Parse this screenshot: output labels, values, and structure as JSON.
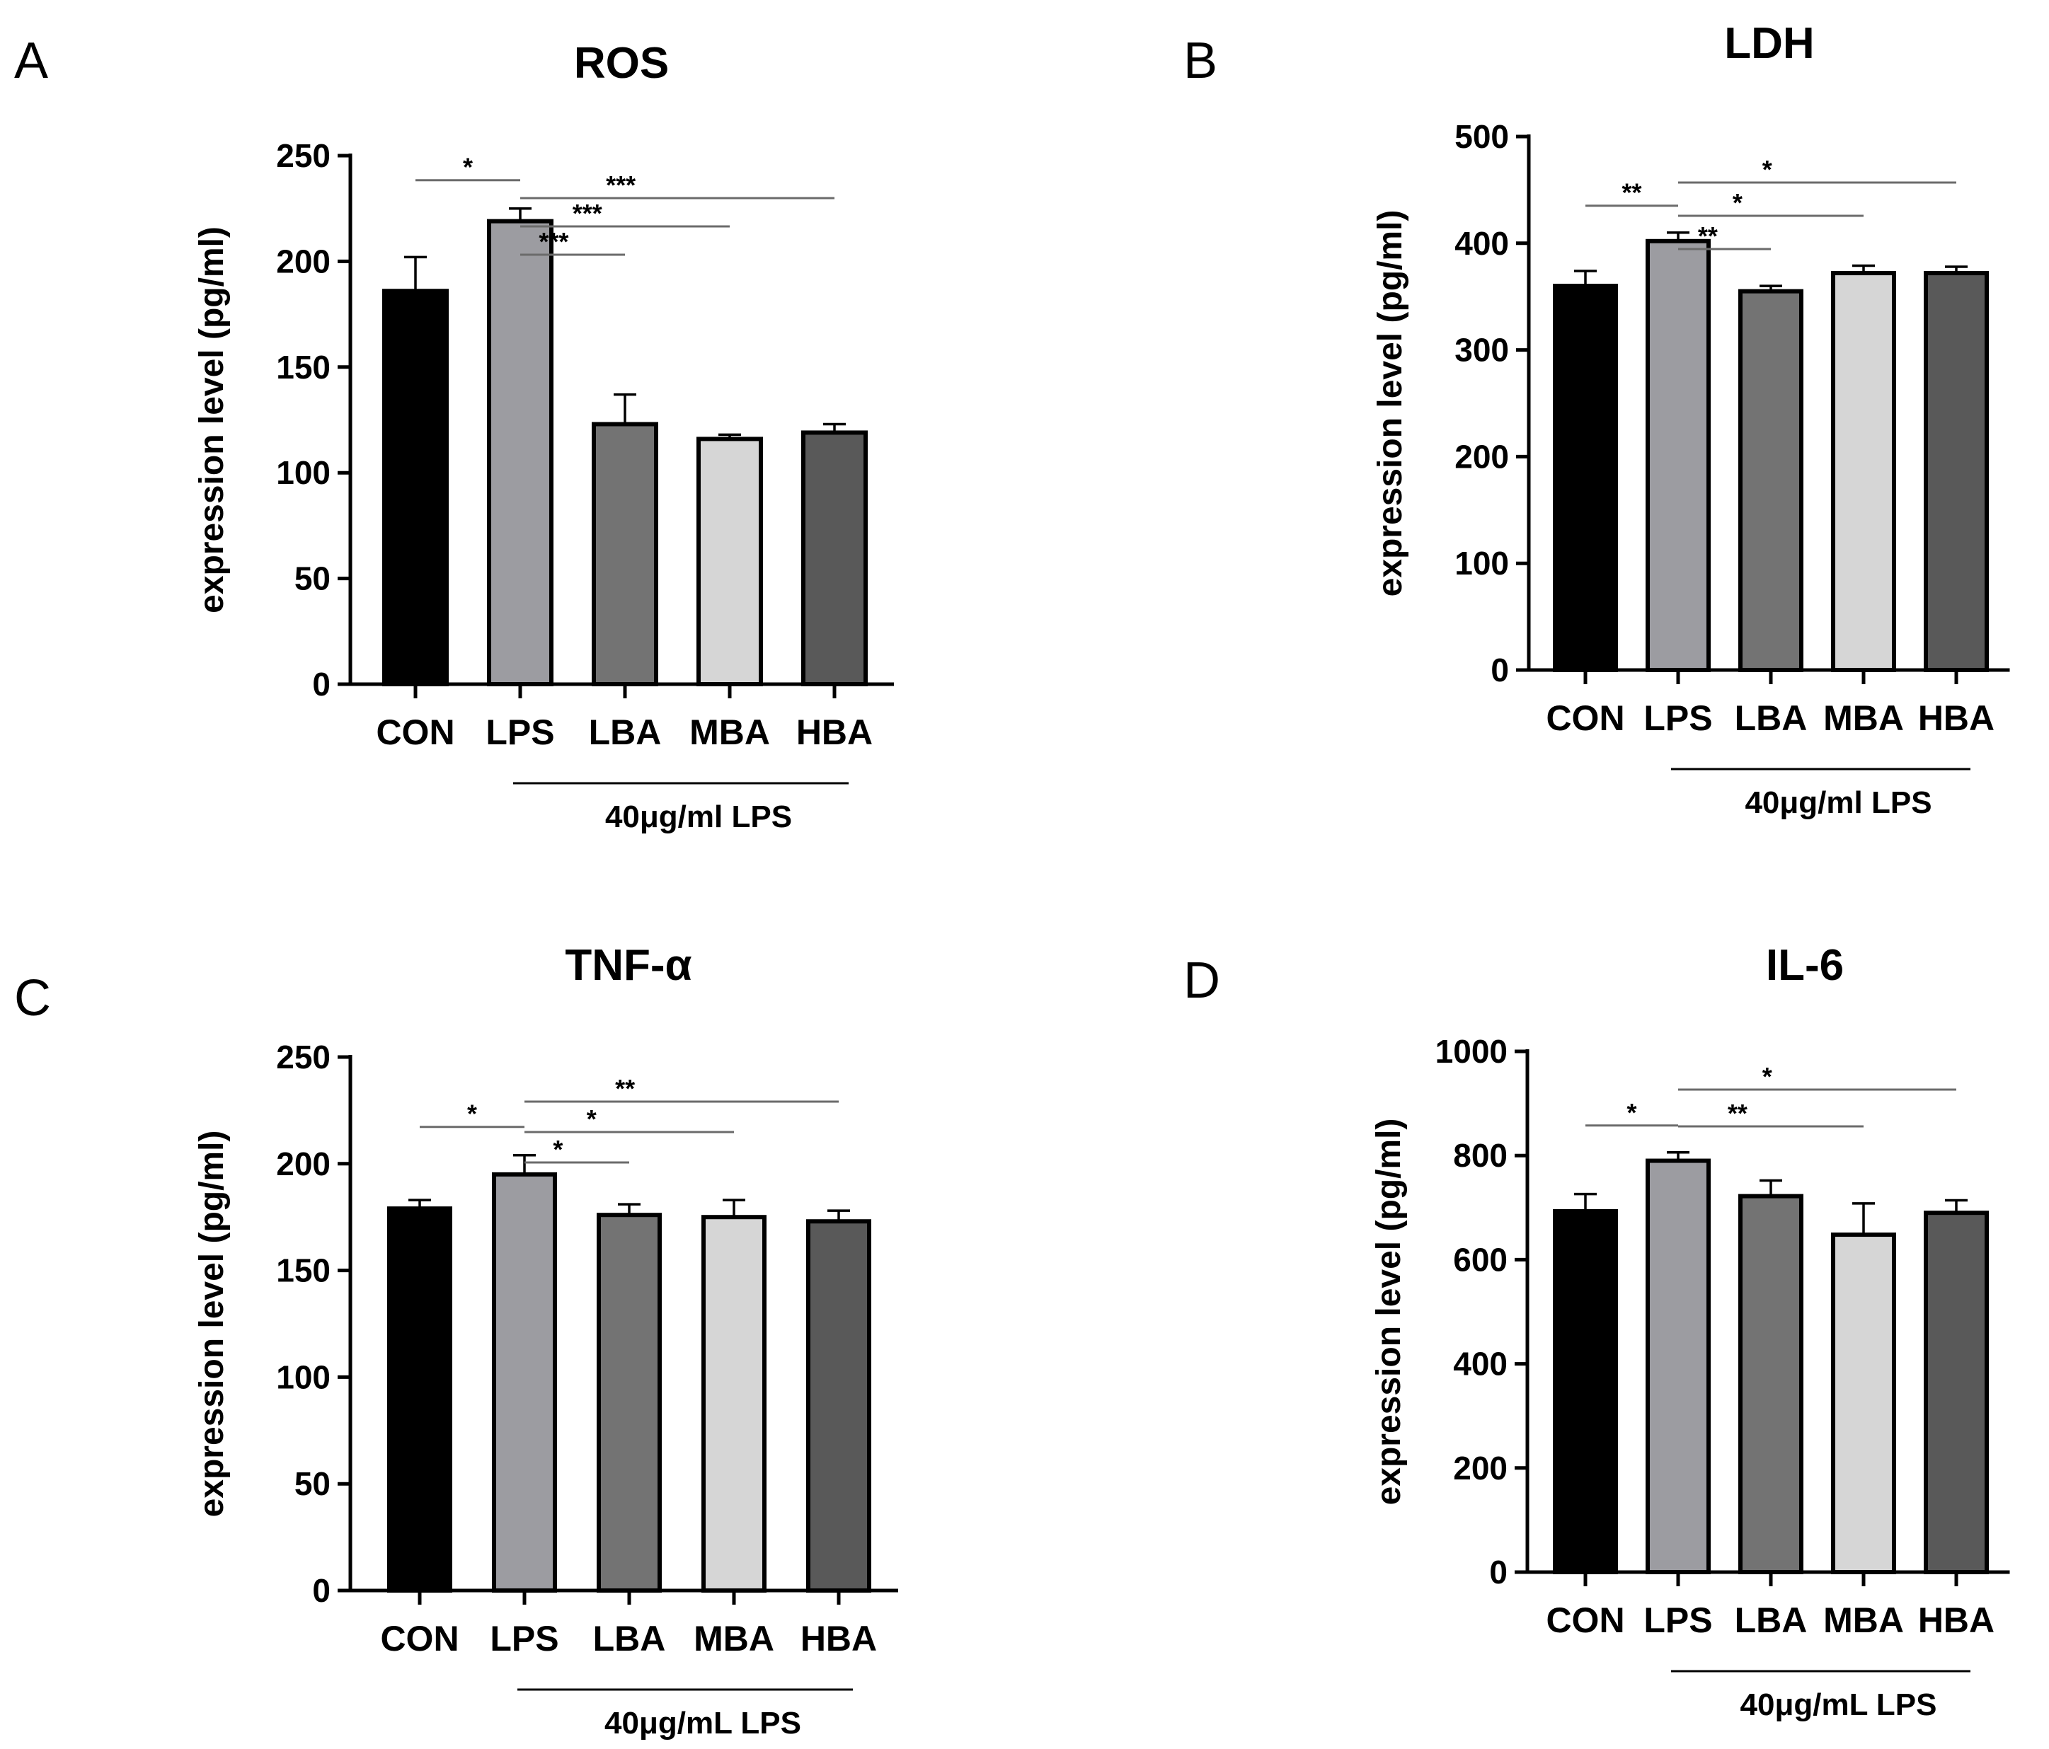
{
  "chart_data": [
    {
      "type": "bar",
      "panel": "A",
      "title": "ROS",
      "ylabel": "expression level (pg/ml)",
      "xlabel": "",
      "categories": [
        "CON",
        "LPS",
        "LBA",
        "MBA",
        "HBA"
      ],
      "values": [
        186,
        219,
        123,
        116,
        119
      ],
      "errors": [
        16,
        6,
        14,
        2,
        4
      ],
      "colors": [
        "#000000",
        "#9c9ca1",
        "#737373",
        "#d6d6d6",
        "#595959"
      ],
      "ylim": [
        0,
        250
      ],
      "yticks": [
        0,
        50,
        100,
        150,
        200,
        250
      ],
      "yticklabels": [
        "0",
        "50",
        "100",
        "150",
        "200",
        "250"
      ],
      "group_label": "40μg/ml LPS",
      "group_span": [
        1,
        4
      ],
      "significance": [
        {
          "from": 0,
          "to": 1,
          "label": "*"
        },
        {
          "from": 1,
          "to": 2,
          "label": "***"
        },
        {
          "from": 1,
          "to": 3,
          "label": "***"
        },
        {
          "from": 1,
          "to": 4,
          "label": "***"
        }
      ]
    },
    {
      "type": "bar",
      "panel": "B",
      "title": "LDH",
      "ylabel": "expression level (pg/ml)",
      "xlabel": "",
      "categories": [
        "CON",
        "LPS",
        "LBA",
        "MBA",
        "HBA"
      ],
      "values": [
        360,
        402,
        355,
        372,
        372
      ],
      "errors": [
        14,
        8,
        5,
        7,
        6
      ],
      "colors": [
        "#000000",
        "#9c9ca1",
        "#737373",
        "#d6d6d6",
        "#595959"
      ],
      "ylim": [
        0,
        500
      ],
      "yticks": [
        0,
        100,
        200,
        300,
        400,
        500
      ],
      "yticklabels": [
        "0",
        "100",
        "200",
        "300",
        "400",
        "500"
      ],
      "group_label": "40μg/ml LPS",
      "group_span": [
        1,
        4
      ],
      "significance": [
        {
          "from": 0,
          "to": 1,
          "label": "**"
        },
        {
          "from": 1,
          "to": 2,
          "label": "**"
        },
        {
          "from": 1,
          "to": 3,
          "label": "*"
        },
        {
          "from": 1,
          "to": 4,
          "label": "*"
        }
      ]
    },
    {
      "type": "bar",
      "panel": "C",
      "title": "TNF-α",
      "ylabel": "expression level (pg/ml)",
      "xlabel": "",
      "categories": [
        "CON",
        "LPS",
        "LBA",
        "MBA",
        "HBA"
      ],
      "values": [
        179,
        195,
        176,
        175,
        173
      ],
      "errors": [
        4,
        9,
        5,
        8,
        5
      ],
      "colors": [
        "#000000",
        "#9c9ca1",
        "#737373",
        "#d6d6d6",
        "#595959"
      ],
      "ylim": [
        0,
        250
      ],
      "yticks": [
        0,
        50,
        100,
        150,
        200,
        250
      ],
      "yticklabels": [
        "0",
        "50",
        "100",
        "150",
        "200",
        "250"
      ],
      "group_label": "40μg/mL LPS",
      "group_span": [
        1,
        4
      ],
      "significance": [
        {
          "from": 0,
          "to": 1,
          "label": "*"
        },
        {
          "from": 1,
          "to": 2,
          "label": "*"
        },
        {
          "from": 1,
          "to": 3,
          "label": "*"
        },
        {
          "from": 1,
          "to": 4,
          "label": "**"
        }
      ]
    },
    {
      "type": "bar",
      "panel": "D",
      "title": "IL-6",
      "ylabel": "expression level (pg/ml)",
      "xlabel": "",
      "categories": [
        "CON",
        "LPS",
        "LBA",
        "MBA",
        "HBA"
      ],
      "values": [
        693,
        790,
        722,
        648,
        690
      ],
      "errors": [
        33,
        16,
        30,
        60,
        24
      ],
      "colors": [
        "#000000",
        "#9c9ca1",
        "#737373",
        "#d6d6d6",
        "#595959"
      ],
      "ylim": [
        0,
        1000
      ],
      "yticks": [
        0,
        200,
        400,
        600,
        800,
        1000
      ],
      "yticklabels": [
        "0",
        "200",
        "400",
        "600",
        "800",
        "1000"
      ],
      "group_label": "40μg/mL LPS",
      "group_span": [
        1,
        4
      ],
      "significance": [
        {
          "from": 0,
          "to": 1,
          "label": "*"
        },
        {
          "from": 1,
          "to": 3,
          "label": "**"
        },
        {
          "from": 1,
          "to": 4,
          "label": "*"
        }
      ]
    }
  ]
}
